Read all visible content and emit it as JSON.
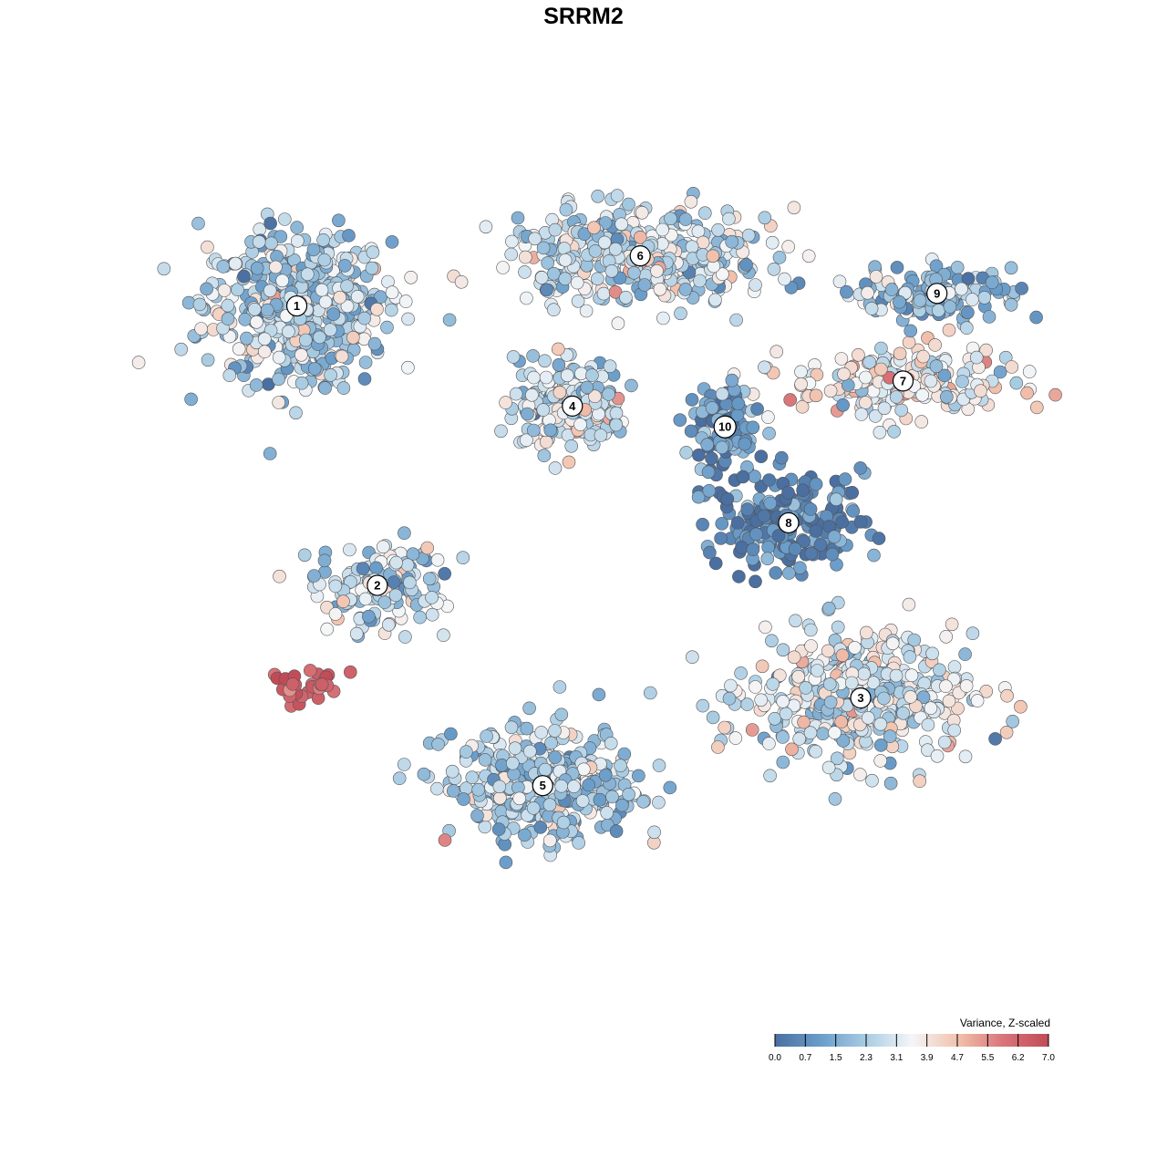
{
  "chart_data": {
    "type": "scatter",
    "title": "SRRM2",
    "legend": {
      "title": "Variance, Z-scaled",
      "placement": "bottom-right",
      "range": [
        0.0,
        7.0
      ],
      "ticks": [
        "0.0",
        "0.7",
        "1.5",
        "2.3",
        "3.1",
        "3.9",
        "4.7",
        "5.5",
        "6.2",
        "7.0"
      ],
      "palette": [
        "#4a6fa0",
        "#6a9dca",
        "#a9cce3",
        "#f4f6f8",
        "#f2c2ad",
        "#d9757a",
        "#c24a57"
      ]
    },
    "grid": false,
    "axes_visible": false,
    "xlim": [
      0,
      100
    ],
    "ylim": [
      0,
      100
    ],
    "clusters": [
      {
        "label": "1",
        "x": 13.5,
        "y": 83.0,
        "value": 2.4
      },
      {
        "label": "2",
        "x": 23.0,
        "y": 49.5,
        "value": 2.6
      },
      {
        "label": "3",
        "x": 80.0,
        "y": 36.0,
        "value": 2.9
      },
      {
        "label": "4",
        "x": 46.0,
        "y": 71.0,
        "value": 2.9
      },
      {
        "label": "5",
        "x": 42.5,
        "y": 25.5,
        "value": 2.4
      },
      {
        "label": "6",
        "x": 54.0,
        "y": 89.0,
        "value": 2.8
      },
      {
        "label": "7",
        "x": 85.0,
        "y": 74.0,
        "value": 3.5
      },
      {
        "label": "8",
        "x": 71.5,
        "y": 57.0,
        "value": 0.5
      },
      {
        "label": "9",
        "x": 89.0,
        "y": 84.5,
        "value": 2.0
      },
      {
        "label": "10",
        "x": 64.0,
        "y": 68.5,
        "value": 0.8
      }
    ]
  }
}
